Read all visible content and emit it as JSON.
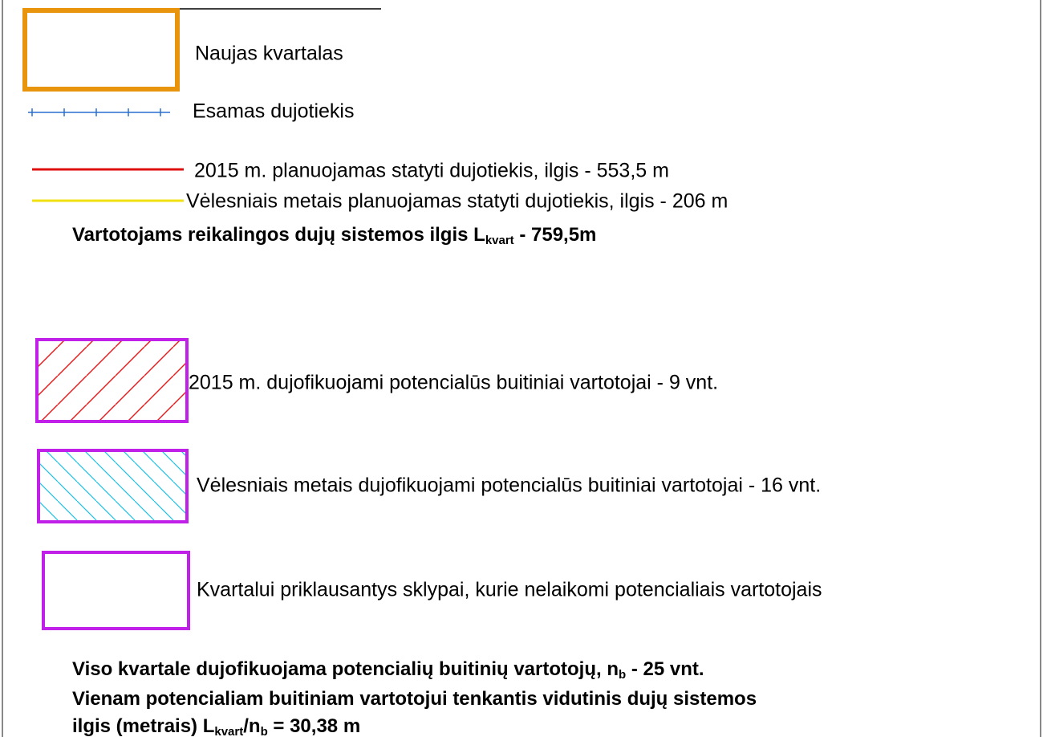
{
  "legend": [
    "Naujas kvartalas",
    "Esamas dujotiekis",
    "2015 m. planuojamas statyti dujotiekis, ilgis - 553,5 m",
    "Vėlesniais metais planuojamas statyti dujotiekis, ilgis - 206 m"
  ],
  "length_summary": {
    "parts": [
      "Vartotojams reikalingos dujų sistemos ilgis L",
      "kvart",
      " - 759,5m"
    ]
  },
  "consumers": [
    "2015 m. dujofikuojami potencialūs buitiniai vartotojai - 9 vnt.",
    "Vėlesniais metais dujofikuojami potencialūs buitiniai vartotojai - 16 vnt.",
    "Kvartalui priklausantys sklypai, kurie nelaikomi potencialiais vartotojais"
  ],
  "totals": [
    {
      "parts": [
        "Viso kvartale dujofikuojama potencialių buitinių vartotojų, n",
        "b",
        " - 25 vnt."
      ]
    },
    {
      "parts": [
        "Vienam potencialiam buitiniam vartotojui tenkantis vidutinis dujų sistemos"
      ]
    },
    {
      "parts": [
        "ilgis (metrais) L",
        "kvart",
        "/n",
        "b",
        " = 30,38 m"
      ]
    }
  ]
}
